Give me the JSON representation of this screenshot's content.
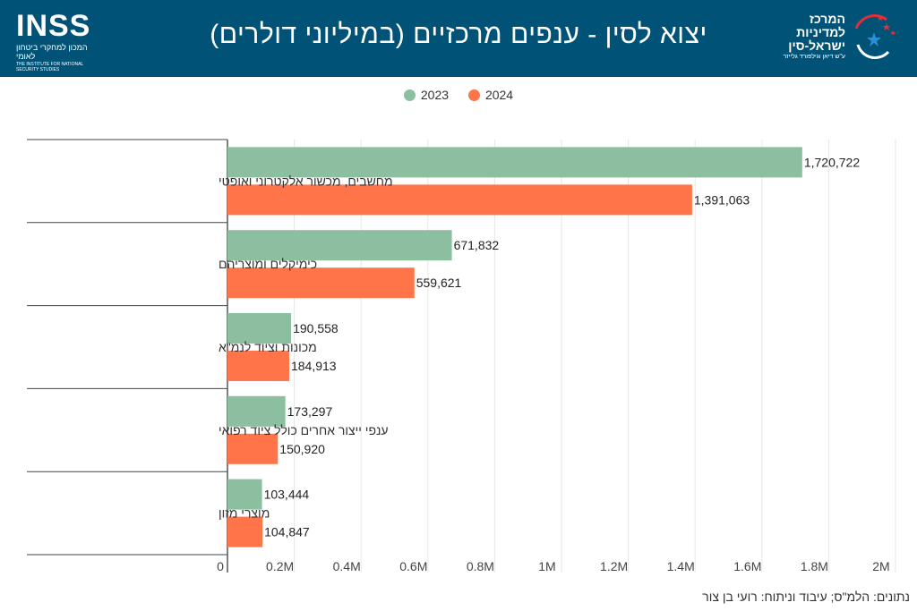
{
  "header": {
    "title": "יצוא לסין - ענפים מרכזיים (במיליוני דולרים)",
    "left_logo": {
      "brand": "INSS",
      "hebrew": "המכון למחקרי ביטחון לאומי",
      "english": "THE INSTITUTE FOR NATIONAL SECURITY STUDIES"
    },
    "right_logo": {
      "line1": "המרכז",
      "line2": "למדיניות",
      "line3": "ישראל-סין",
      "line4": "ע\"ש דיאן וגילפורד גלייזר"
    }
  },
  "colors": {
    "header_bg": "#005377",
    "series_2023": "#8bbf9f",
    "series_2024": "#ff7549"
  },
  "chart_data": {
    "type": "bar",
    "orientation": "horizontal",
    "categories": [
      "מחשבים, מכשור אלקטרוני ואופטי",
      "כימיקלים ומוצריהם",
      "מכונות וציוד לנמ\"א",
      "ענפי ייצור אחרים כולל ציוד רפואי",
      "מוצרי מזון"
    ],
    "series": [
      {
        "name": "2023",
        "color": "#8bbf9f",
        "values": [
          1720722,
          671832,
          190558,
          173297,
          103444
        ],
        "labels": [
          "1,720,722",
          "671,832",
          "190,558",
          "173,297",
          "103,444"
        ]
      },
      {
        "name": "2024",
        "color": "#ff7549",
        "values": [
          1391063,
          559621,
          184913,
          150920,
          104847
        ],
        "labels": [
          "1,391,063",
          "559,621",
          "184,913",
          "150,920",
          "104,847"
        ]
      }
    ],
    "xlim": [
      0,
      2000000
    ],
    "xticks": [
      0,
      200000,
      400000,
      600000,
      800000,
      1000000,
      1200000,
      1400000,
      1600000,
      1800000,
      2000000
    ],
    "xtick_labels": [
      "0",
      "0.2M",
      "0.4M",
      "0.6M",
      "0.8M",
      "1M",
      "1.2M",
      "1.4M",
      "1.6M",
      "1.8M",
      "2M"
    ],
    "grid": true,
    "legend_position": "top-center"
  },
  "footer": {
    "source": "נתונים: הלמ\"ס; עיבוד וניתוח: רועי בן צור"
  }
}
